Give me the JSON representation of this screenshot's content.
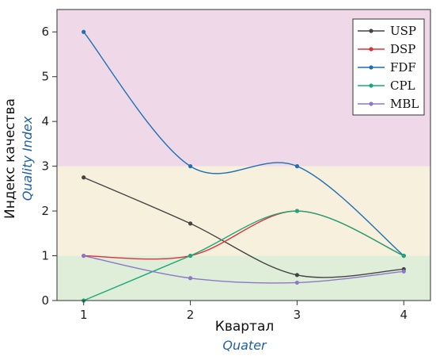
{
  "chart_data": {
    "type": "line",
    "xlabel": "Квартал",
    "xlabel_en": "Quater",
    "ylabel": "Индекс качества",
    "ylabel_en": "Quality Index",
    "x": [
      1,
      2,
      3,
      4
    ],
    "x_ticks": [
      "1",
      "2",
      "3",
      "4"
    ],
    "y_ticks": [
      "0",
      "1",
      "2",
      "3",
      "4",
      "5",
      "6"
    ],
    "xlim": [
      0.75,
      4.25
    ],
    "ylim": [
      0,
      6.5
    ],
    "grid": false,
    "legend_placement": "top-right",
    "bands": [
      {
        "from": 0,
        "to": 1,
        "color": "#dfeed9"
      },
      {
        "from": 1,
        "to": 3,
        "color": "#f6f0dc"
      },
      {
        "from": 3,
        "to": 6.5,
        "color": "#efd9e8"
      }
    ],
    "series": [
      {
        "name": "USP",
        "color": "#444444",
        "values": [
          2.75,
          1.72,
          0.57,
          0.7
        ]
      },
      {
        "name": "DSP",
        "color": "#e0303a",
        "values": [
          1.0,
          1.0,
          2.0,
          1.0
        ]
      },
      {
        "name": "FDF",
        "color": "#1f6fb5",
        "values": [
          6.0,
          3.0,
          3.0,
          1.0
        ]
      },
      {
        "name": "CPL",
        "color": "#1aa87a",
        "values": [
          0.0,
          1.0,
          2.0,
          1.0
        ]
      },
      {
        "name": "MBL",
        "color": "#8b78c8",
        "values": [
          1.0,
          0.5,
          0.4,
          0.65
        ]
      }
    ]
  }
}
